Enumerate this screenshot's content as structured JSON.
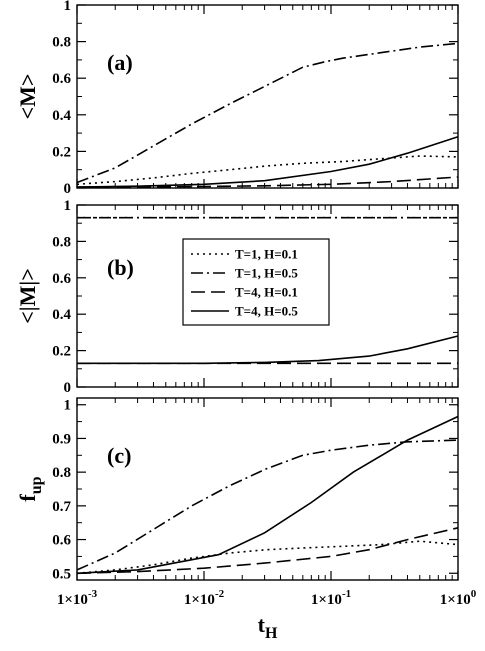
{
  "chart_data": [
    {
      "type": "line",
      "panel_label": "(a)",
      "ylabel": "<M>",
      "xscale": "log",
      "xlim": [
        0.001,
        1
      ],
      "ylim": [
        0,
        1
      ],
      "yticks": [
        "0",
        "0.2",
        "0.4",
        "0.6",
        "0.8",
        "1"
      ],
      "yticks_values": [
        0,
        0.2,
        0.4,
        0.6,
        0.8,
        1
      ],
      "series": [
        {
          "name": "T=1, H=0.1",
          "dash": "dotted",
          "x": [
            0.001,
            0.002,
            0.004,
            0.008,
            0.016,
            0.031,
            0.06,
            0.125,
            0.25,
            0.5,
            1
          ],
          "y": [
            0.02,
            0.035,
            0.055,
            0.08,
            0.1,
            0.12,
            0.135,
            0.145,
            0.16,
            0.175,
            0.17
          ]
        },
        {
          "name": "T=1, H=0.5",
          "dash": "dashdot",
          "x": [
            0.001,
            0.002,
            0.004,
            0.008,
            0.016,
            0.031,
            0.06,
            0.09,
            0.125,
            0.25,
            0.5,
            1
          ],
          "y": [
            0.03,
            0.11,
            0.23,
            0.35,
            0.46,
            0.56,
            0.66,
            0.69,
            0.71,
            0.74,
            0.77,
            0.79
          ]
        },
        {
          "name": "T=4, H=0.1",
          "dash": "dashed",
          "x": [
            0.001,
            0.01,
            0.03,
            0.1,
            0.3,
            1
          ],
          "y": [
            0.005,
            0.008,
            0.012,
            0.02,
            0.035,
            0.06
          ]
        },
        {
          "name": "T=4, H=0.5",
          "dash": "solid",
          "x": [
            0.001,
            0.003,
            0.01,
            0.03,
            0.1,
            0.2,
            0.4,
            1
          ],
          "y": [
            0.005,
            0.01,
            0.02,
            0.04,
            0.09,
            0.13,
            0.19,
            0.28
          ]
        }
      ]
    },
    {
      "type": "line",
      "panel_label": "(b)",
      "ylabel": "<|M|>",
      "xscale": "log",
      "xlim": [
        0.001,
        1
      ],
      "ylim": [
        0,
        1
      ],
      "yticks": [
        "0",
        "0.2",
        "0.4",
        "0.6",
        "0.8",
        "1"
      ],
      "yticks_values": [
        0,
        0.2,
        0.4,
        0.6,
        0.8,
        1
      ],
      "legend": {
        "position": "center",
        "entries": [
          "T=1, H=0.1",
          "T=1, H=0.5",
          "T=4, H=0.1",
          "T=4, H=0.5"
        ]
      },
      "series": [
        {
          "name": "T=1, H=0.1",
          "dash": "dotted",
          "x": [
            0.001,
            1
          ],
          "y": [
            0.93,
            0.93
          ]
        },
        {
          "name": "T=1, H=0.5",
          "dash": "dashdot",
          "x": [
            0.001,
            1
          ],
          "y": [
            0.93,
            0.93
          ]
        },
        {
          "name": "T=4, H=0.1",
          "dash": "dashed",
          "x": [
            0.001,
            1
          ],
          "y": [
            0.13,
            0.13
          ]
        },
        {
          "name": "T=4, H=0.5",
          "dash": "solid",
          "x": [
            0.001,
            0.01,
            0.03,
            0.08,
            0.2,
            0.4,
            1
          ],
          "y": [
            0.13,
            0.13,
            0.135,
            0.145,
            0.17,
            0.21,
            0.28
          ]
        }
      ]
    },
    {
      "type": "line",
      "panel_label": "(c)",
      "ylabel": "f_up",
      "ylabel_main": "f",
      "ylabel_sub": "up",
      "xscale": "log",
      "xlim": [
        0.001,
        1
      ],
      "ylim": [
        0.48,
        1.02
      ],
      "yticks": [
        "0.5",
        "0.6",
        "0.7",
        "0.8",
        "0.9",
        "1"
      ],
      "yticks_values": [
        0.5,
        0.6,
        0.7,
        0.8,
        0.9,
        1
      ],
      "xticks_values": [
        0.001,
        0.01,
        0.1,
        1
      ],
      "xticks_base": [
        "1×10",
        "1×10",
        "1×10",
        "1×10"
      ],
      "xticks_exp": [
        "-3",
        "-2",
        "-1",
        "0"
      ],
      "xlabel_main": "t",
      "xlabel_sub": "H",
      "series": [
        {
          "name": "T=1, H=0.1",
          "dash": "dotted",
          "x": [
            0.001,
            0.002,
            0.004,
            0.008,
            0.016,
            0.031,
            0.06,
            0.125,
            0.25,
            0.5,
            1
          ],
          "y": [
            0.5,
            0.51,
            0.525,
            0.545,
            0.56,
            0.57,
            0.575,
            0.58,
            0.585,
            0.595,
            0.585
          ]
        },
        {
          "name": "T=1, H=0.5",
          "dash": "dashdot",
          "x": [
            0.001,
            0.002,
            0.004,
            0.008,
            0.016,
            0.031,
            0.06,
            0.1,
            0.2,
            0.4,
            1
          ],
          "y": [
            0.51,
            0.56,
            0.63,
            0.7,
            0.76,
            0.81,
            0.85,
            0.865,
            0.88,
            0.89,
            0.895
          ]
        },
        {
          "name": "T=4, H=0.1",
          "dash": "dashed",
          "x": [
            0.001,
            0.003,
            0.01,
            0.03,
            0.1,
            0.2,
            0.4,
            1
          ],
          "y": [
            0.5,
            0.505,
            0.515,
            0.53,
            0.55,
            0.57,
            0.6,
            0.635
          ]
        },
        {
          "name": "T=4, H=0.5",
          "dash": "solid",
          "x": [
            0.001,
            0.003,
            0.013,
            0.03,
            0.07,
            0.15,
            0.4,
            1
          ],
          "y": [
            0.5,
            0.51,
            0.555,
            0.62,
            0.71,
            0.8,
            0.895,
            0.965
          ]
        }
      ]
    }
  ]
}
